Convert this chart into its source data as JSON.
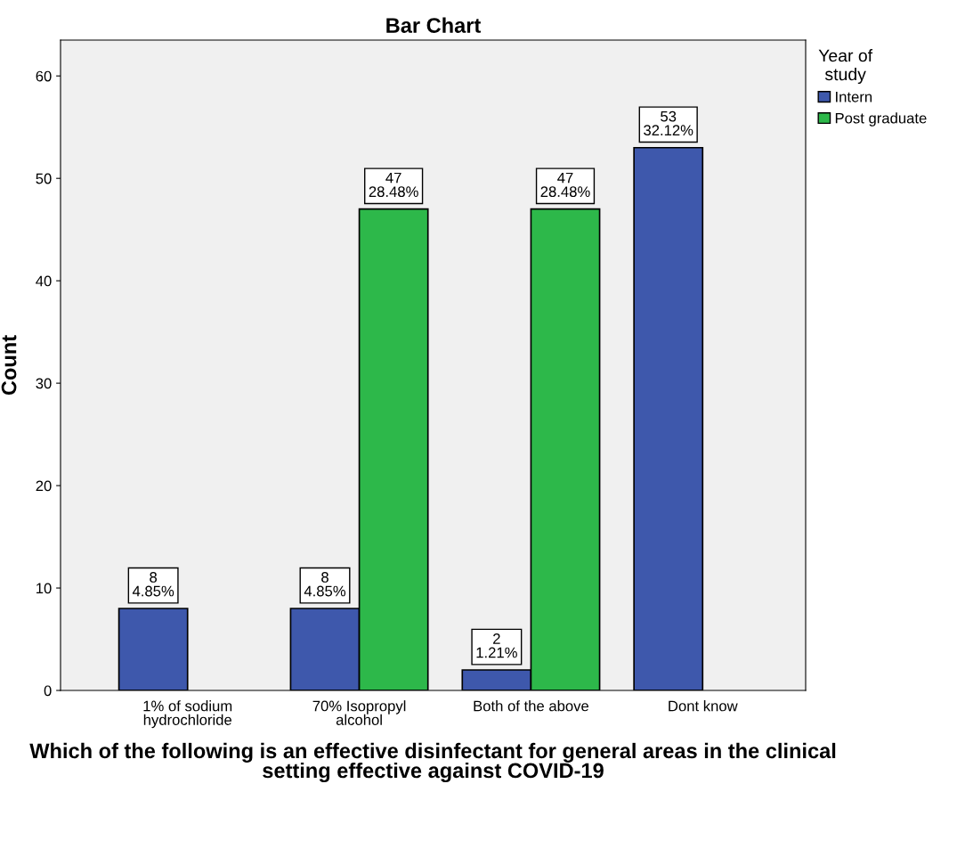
{
  "chart_data": {
    "type": "bar",
    "title": "Bar Chart",
    "xlabel": "Which of the following is an effective disinfectant for general areas in the clinical setting effective against COVID-19",
    "ylabel": "Count",
    "legend_title": "Year of\nstudy",
    "categories": [
      "1% of sodium\nhydrochloride",
      "70% Isopropyl\nalcohol",
      "Both of the above",
      "Dont know"
    ],
    "series": [
      {
        "name": "Intern",
        "color": "#3e58ac",
        "values": [
          8,
          8,
          2,
          53
        ],
        "value_labels": [
          "8\n4.85%",
          "8\n4.85%",
          "2\n1.21%",
          "53\n32.12%"
        ]
      },
      {
        "name": "Post graduate",
        "color": "#2db84a",
        "values": [
          null,
          47,
          47,
          null
        ],
        "value_labels": [
          null,
          "47\n28.48%",
          "47\n28.48%",
          null
        ]
      }
    ],
    "ylim": [
      0,
      63.5
    ],
    "yticks": [
      0,
      10,
      20,
      30,
      40,
      50,
      60
    ],
    "grid": false,
    "legend": "top right"
  }
}
